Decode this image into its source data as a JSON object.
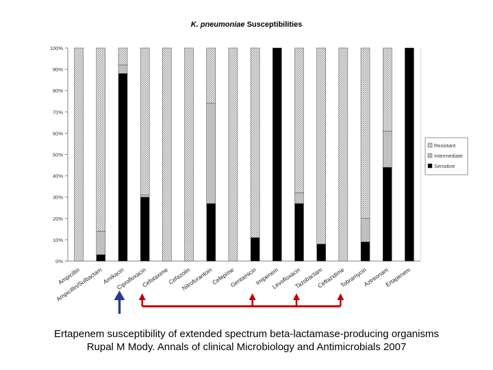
{
  "chart_data": {
    "type": "bar",
    "stacked": true,
    "percent": true,
    "title_species": "K. pneumoniae",
    "title_rest": "Susceptibilities",
    "categories": [
      "Ampicillin",
      "Ampicillin/Sulbactam",
      "Amikacin",
      "Ciprofloxacin",
      "Cefotaxime",
      "Cefazolin",
      "Nitrofurantoin",
      "Cefepime",
      "Gentamicin",
      "Imipenem",
      "Levofloxacin",
      "Tazobactam",
      "Ceftazidime",
      "Tobramycin",
      "Aztreonam",
      "Ertapenem"
    ],
    "series": [
      {
        "name": "Sensitive",
        "values": [
          0,
          3,
          88,
          30,
          0,
          0,
          27,
          0,
          11,
          100,
          27,
          8,
          0,
          9,
          44,
          100
        ]
      },
      {
        "name": "Intermediate",
        "values": [
          0,
          11,
          4,
          1,
          0,
          0,
          47,
          0,
          0,
          0,
          5,
          0,
          0,
          11,
          17,
          0
        ]
      },
      {
        "name": "Resistant",
        "values": [
          100,
          86,
          8,
          69,
          100,
          100,
          26,
          100,
          89,
          0,
          68,
          92,
          100,
          80,
          39,
          0
        ]
      }
    ],
    "yticks": [
      "0%",
      "10%",
      "20%",
      "30%",
      "40%",
      "50%",
      "60%",
      "70%",
      "80%",
      "90%",
      "100%"
    ],
    "ylim": [
      0,
      100
    ],
    "legend_position": "right",
    "legend": [
      "Resistant",
      "Intermediate",
      "Sensitive"
    ]
  },
  "annotations": {
    "up_arrow_under": "Amikacin",
    "bracket_categories": [
      "Ciprofloxacin",
      "Gentamicin",
      "Levofloxacin",
      "Ceftazidime"
    ],
    "up_arrow_color": "#2b3a8f",
    "bracket_color": "#c00000"
  },
  "caption": {
    "line1": "Ertapenem susceptibility of extended spectrum beta-lactamase-producing organisms",
    "line2": "Rupal M Mody. Annals of clinical Microbiology and Antimicrobials 2007"
  },
  "colors": {
    "sensitive": "#000000",
    "intermediate": "#c0c0c0",
    "resistant_bg": "#ffffff",
    "resistant_hatch": "#888888"
  }
}
